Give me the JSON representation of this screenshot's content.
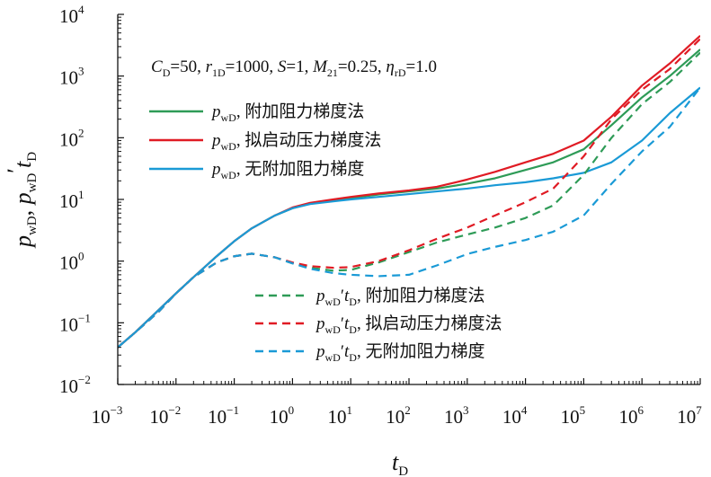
{
  "chart_data": {
    "type": "line",
    "title": "",
    "xlabel": "t_D",
    "ylabel": "p_wD, p_wD' t_D",
    "x_scale": "log",
    "y_scale": "log",
    "xlim": [
      0.001,
      10000000
    ],
    "ylim": [
      0.01,
      10000
    ],
    "grid": false,
    "x_ticks": [
      {
        "base": "10",
        "exp": "−3",
        "value": 0.001
      },
      {
        "base": "10",
        "exp": "−2",
        "value": 0.01
      },
      {
        "base": "10",
        "exp": "−1",
        "value": 0.1
      },
      {
        "base": "10",
        "exp": "0",
        "value": 1
      },
      {
        "base": "10",
        "exp": "1",
        "value": 10
      },
      {
        "base": "10",
        "exp": "2",
        "value": 100
      },
      {
        "base": "10",
        "exp": "3",
        "value": 1000
      },
      {
        "base": "10",
        "exp": "4",
        "value": 10000
      },
      {
        "base": "10",
        "exp": "5",
        "value": 100000
      },
      {
        "base": "10",
        "exp": "6",
        "value": 1000000
      },
      {
        "base": "10",
        "exp": "7",
        "value": 10000000
      }
    ],
    "y_ticks": [
      {
        "base": "10",
        "exp": "−2",
        "value": 0.01
      },
      {
        "base": "10",
        "exp": "−1",
        "value": 0.1
      },
      {
        "base": "10",
        "exp": "0",
        "value": 1
      },
      {
        "base": "10",
        "exp": "1",
        "value": 10
      },
      {
        "base": "10",
        "exp": "2",
        "value": 100
      },
      {
        "base": "10",
        "exp": "3",
        "value": 1000
      },
      {
        "base": "10",
        "exp": "4",
        "value": 10000
      }
    ],
    "annotation": {
      "parts": [
        {
          "t": "C",
          "style": "italic"
        },
        {
          "t": "D",
          "style": "sub"
        },
        {
          "t": "=50, ",
          "style": "normal"
        },
        {
          "t": "r",
          "style": "italic"
        },
        {
          "t": "1D",
          "style": "sub"
        },
        {
          "t": "=1000, ",
          "style": "normal"
        },
        {
          "t": "S",
          "style": "italic"
        },
        {
          "t": "=1, ",
          "style": "normal"
        },
        {
          "t": "M",
          "style": "italic"
        },
        {
          "t": "21",
          "style": "sub"
        },
        {
          "t": "=0.25, ",
          "style": "normal"
        },
        {
          "t": "η",
          "style": "italic"
        },
        {
          "t": "rD",
          "style": "sub"
        },
        {
          "t": "=1.0",
          "style": "normal"
        }
      ]
    },
    "series": [
      {
        "name": "p_wD, 附加阻力梯度法",
        "var": "p",
        "sub": "wD",
        "prime": false,
        "label": "附加阻力梯度法",
        "color": "#2e9b57",
        "dash": "solid",
        "x": [
          0.001,
          0.002,
          0.005,
          0.01,
          0.02,
          0.05,
          0.1,
          0.2,
          0.5,
          1,
          2,
          5,
          10,
          30,
          100,
          300,
          1000,
          3000,
          10000,
          30000,
          100000,
          300000,
          1000000,
          3000000,
          10000000
        ],
        "y": [
          0.04,
          0.07,
          0.16,
          0.3,
          0.55,
          1.2,
          2.1,
          3.4,
          5.5,
          7.2,
          8.5,
          9.6,
          10.5,
          12.0,
          13.5,
          15.0,
          18.0,
          22.0,
          30.0,
          40.0,
          65.0,
          160.0,
          450.0,
          1000.0,
          2700.0
        ]
      },
      {
        "name": "p_wD, 拟启动压力梯度法",
        "var": "p",
        "sub": "wD",
        "prime": false,
        "label": "拟启动压力梯度法",
        "color": "#e01b24",
        "dash": "solid",
        "x": [
          0.001,
          0.002,
          0.005,
          0.01,
          0.02,
          0.05,
          0.1,
          0.2,
          0.5,
          1,
          2,
          5,
          10,
          30,
          100,
          300,
          1000,
          3000,
          10000,
          30000,
          100000,
          300000,
          1000000,
          3000000,
          10000000
        ],
        "y": [
          0.04,
          0.07,
          0.16,
          0.3,
          0.55,
          1.2,
          2.1,
          3.4,
          5.5,
          7.4,
          8.8,
          10.0,
          11.0,
          12.5,
          14.0,
          16.0,
          21.0,
          28.0,
          40.0,
          55.0,
          90.0,
          220.0,
          700.0,
          1600.0,
          4500.0
        ]
      },
      {
        "name": "p_wD, 无附加阻力梯度",
        "var": "p",
        "sub": "wD",
        "prime": false,
        "label": "无附加阻力梯度",
        "color": "#1a9ad6",
        "dash": "solid",
        "x": [
          0.001,
          0.002,
          0.005,
          0.01,
          0.02,
          0.05,
          0.1,
          0.2,
          0.5,
          1,
          2,
          5,
          10,
          30,
          100,
          300,
          1000,
          3000,
          10000,
          30000,
          100000,
          300000,
          1000000,
          3000000,
          10000000
        ],
        "y": [
          0.04,
          0.07,
          0.16,
          0.3,
          0.55,
          1.2,
          2.1,
          3.4,
          5.5,
          7.2,
          8.4,
          9.3,
          10.0,
          11.0,
          12.2,
          13.5,
          15.0,
          17.0,
          19.0,
          22.0,
          27.0,
          40.0,
          90.0,
          250.0,
          650.0
        ]
      },
      {
        "name": "p_wD' t_D, 附加阻力梯度法",
        "var": "p",
        "sub": "wD",
        "prime": true,
        "label": "附加阻力梯度法",
        "color": "#2e9b57",
        "dash": "dashed",
        "x": [
          0.001,
          0.002,
          0.005,
          0.01,
          0.02,
          0.05,
          0.1,
          0.2,
          0.5,
          1,
          2,
          5,
          10,
          30,
          100,
          300,
          1000,
          3000,
          10000,
          30000,
          100000,
          300000,
          1000000,
          3000000,
          10000000
        ],
        "y": [
          0.04,
          0.07,
          0.15,
          0.3,
          0.55,
          0.95,
          1.2,
          1.32,
          1.15,
          0.92,
          0.78,
          0.7,
          0.72,
          0.95,
          1.4,
          2.0,
          2.7,
          3.5,
          5.0,
          8.0,
          25.0,
          100.0,
          350.0,
          800.0,
          2400.0
        ]
      },
      {
        "name": "p_wD' t_D, 拟启动压力梯度法",
        "var": "p",
        "sub": "wD",
        "prime": true,
        "label": "拟启动压力梯度法",
        "color": "#e01b24",
        "dash": "dashed",
        "x": [
          0.001,
          0.002,
          0.005,
          0.01,
          0.02,
          0.05,
          0.1,
          0.2,
          0.5,
          1,
          2,
          5,
          10,
          30,
          100,
          300,
          1000,
          3000,
          10000,
          30000,
          100000,
          300000,
          1000000,
          3000000,
          10000000
        ],
        "y": [
          0.04,
          0.07,
          0.15,
          0.3,
          0.55,
          0.95,
          1.2,
          1.32,
          1.15,
          0.95,
          0.83,
          0.78,
          0.8,
          1.0,
          1.5,
          2.3,
          3.5,
          5.5,
          9.0,
          15.0,
          50.0,
          200.0,
          600.0,
          1300.0,
          4000.0
        ]
      },
      {
        "name": "p_wD' t_D, 无附加阻力梯度",
        "var": "p",
        "sub": "wD",
        "prime": true,
        "label": "无附加阻力梯度",
        "color": "#1a9ad6",
        "dash": "dashed",
        "x": [
          0.001,
          0.002,
          0.005,
          0.01,
          0.02,
          0.05,
          0.1,
          0.2,
          0.5,
          1,
          2,
          5,
          10,
          30,
          100,
          300,
          1000,
          3000,
          10000,
          30000,
          100000,
          300000,
          1000000,
          3000000,
          10000000
        ],
        "y": [
          0.04,
          0.07,
          0.15,
          0.3,
          0.55,
          0.95,
          1.2,
          1.32,
          1.15,
          0.92,
          0.75,
          0.64,
          0.6,
          0.57,
          0.6,
          0.85,
          1.3,
          1.7,
          2.2,
          3.0,
          5.5,
          18.0,
          60.0,
          150.0,
          650.0
        ]
      }
    ],
    "legend_groups": [
      {
        "position": "upper-left",
        "series_indices": [
          0,
          1,
          2
        ]
      },
      {
        "position": "lower-center",
        "series_indices": [
          3,
          4,
          5
        ]
      }
    ]
  }
}
